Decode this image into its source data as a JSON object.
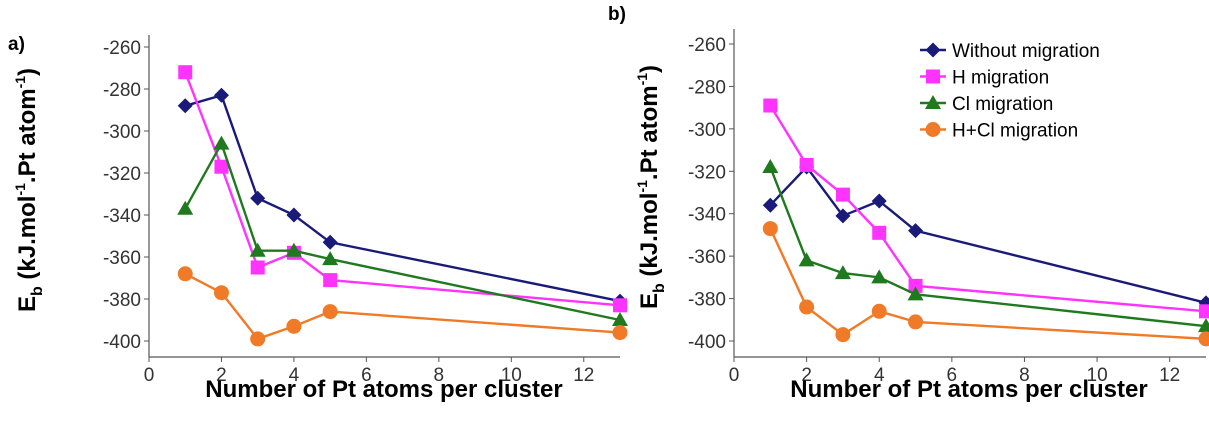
{
  "chart_data": [
    {
      "type": "line",
      "panel_label": "a)",
      "xlabel": "Number of Pt atoms per cluster",
      "ylabel": {
        "main": "E",
        "sub": "b",
        "rest1": " (kJ.mol",
        "sup1": "-1",
        "rest2": ".Pt atom",
        "sup2": "-1",
        "rest3": ")"
      },
      "xlim": [
        0,
        13
      ],
      "ylim": [
        -410,
        -250
      ],
      "xticks": [
        0,
        2,
        4,
        6,
        8,
        10,
        12
      ],
      "yticks": [
        -260,
        -280,
        -300,
        -320,
        -340,
        -360,
        -380,
        -400
      ],
      "x": [
        1,
        2,
        3,
        4,
        5,
        13
      ],
      "series": [
        {
          "name": "Without migration",
          "color": "#1a1a7a",
          "marker": "diamond",
          "values": [
            -288,
            -283,
            -332,
            -340,
            -353,
            -381
          ]
        },
        {
          "name": "H migration",
          "color": "#ff33ff",
          "marker": "square",
          "values": [
            -272,
            -317,
            -365,
            -358,
            -371,
            -383
          ]
        },
        {
          "name": "Cl migration",
          "color": "#1f7a1f",
          "marker": "triangle",
          "values": [
            -337,
            -306,
            -357,
            -357,
            -361,
            -390
          ]
        },
        {
          "name": "H+Cl migration",
          "color": "#f07a28",
          "marker": "circle",
          "values": [
            -368,
            -377,
            -399,
            -393,
            -386,
            -396
          ]
        }
      ]
    },
    {
      "type": "line",
      "panel_label": "b)",
      "xlabel": "Number of Pt atoms per cluster",
      "ylabel": {
        "main": "E",
        "sub": "b",
        "rest1": " (kJ.mol",
        "sup1": "-1",
        "rest2": ".Pt atom",
        "sup2": "-1",
        "rest3": ")"
      },
      "xlim": [
        0,
        13
      ],
      "ylim": [
        -410,
        -250
      ],
      "xticks": [
        0,
        2,
        4,
        6,
        8,
        10,
        12
      ],
      "yticks": [
        -260,
        -280,
        -300,
        -320,
        -340,
        -360,
        -380,
        -400
      ],
      "legend_position": "top-right",
      "x": [
        1,
        2,
        3,
        4,
        5,
        13
      ],
      "series": [
        {
          "name": "Without migration",
          "color": "#1a1a7a",
          "marker": "diamond",
          "values": [
            -336,
            -318,
            -341,
            -334,
            -348,
            -382
          ]
        },
        {
          "name": "H migration",
          "color": "#ff33ff",
          "marker": "square",
          "values": [
            -289,
            -317,
            -331,
            -349,
            -374,
            -386
          ]
        },
        {
          "name": "Cl migration",
          "color": "#1f7a1f",
          "marker": "triangle",
          "values": [
            -318,
            -362,
            -368,
            -370,
            -378,
            -393
          ]
        },
        {
          "name": "H+Cl migration",
          "color": "#f07a28",
          "marker": "circle",
          "values": [
            -347,
            -384,
            -397,
            -386,
            -391,
            -399
          ]
        }
      ]
    }
  ]
}
